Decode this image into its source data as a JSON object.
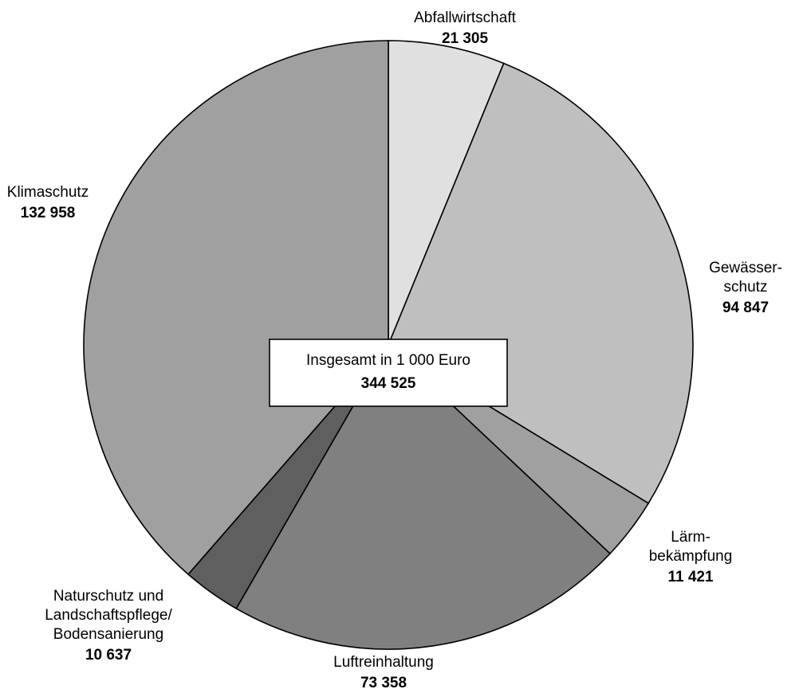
{
  "chart_data": {
    "type": "pie",
    "total": {
      "label": "Insgesamt in 1 000  Euro",
      "value": "344 525"
    },
    "slices": [
      {
        "label_lines": [
          "Abfallwirtschaft"
        ],
        "value": 21305,
        "value_label": "21 305",
        "color": "#e0e0e0"
      },
      {
        "label_lines": [
          "Gewässer-",
          "schutz"
        ],
        "value": 94847,
        "value_label": "94 847",
        "color": "#bfbfbf"
      },
      {
        "label_lines": [
          "Lärm-",
          "bekämpfung"
        ],
        "value": 11421,
        "value_label": "11 421",
        "color": "#a0a0a0"
      },
      {
        "label_lines": [
          "Luftreinhaltung"
        ],
        "value": 73358,
        "value_label": "73 358",
        "color": "#808080"
      },
      {
        "label_lines": [
          "Naturschutz und",
          "Landschaftspflege/",
          "Bodensanierung"
        ],
        "value": 10637,
        "value_label": "10 637",
        "color": "#5f5f5f"
      },
      {
        "label_lines": [
          "Klimaschutz"
        ],
        "value": 132958,
        "value_label": "132 958",
        "color": "#a0a0a0"
      }
    ]
  }
}
